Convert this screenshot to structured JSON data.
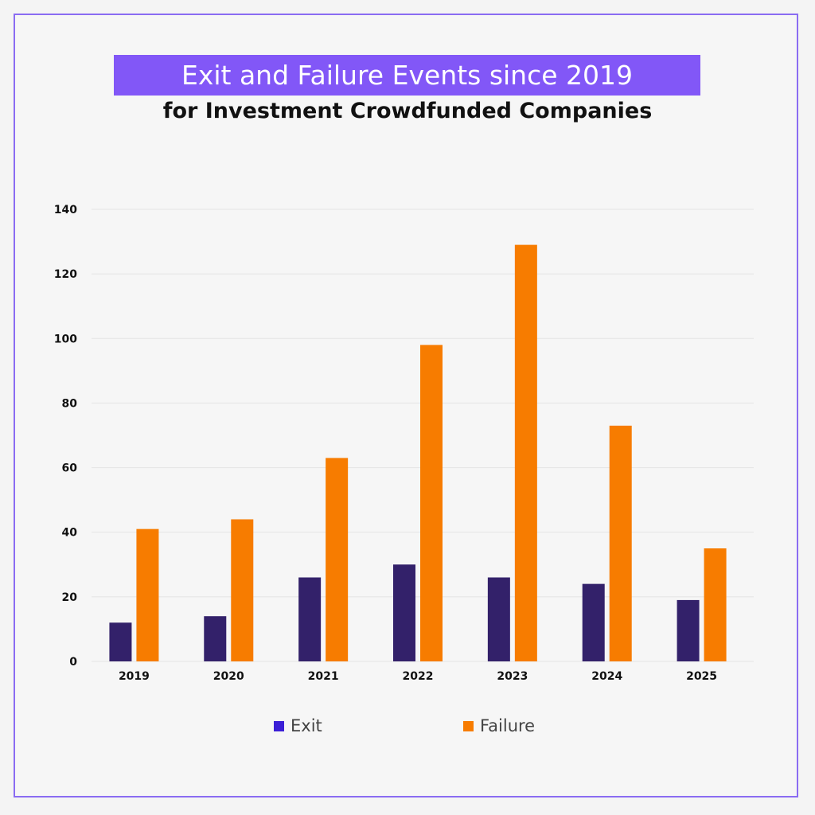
{
  "chart_data": {
    "type": "bar",
    "title": "Exit and Failure Events since 2019",
    "subtitle": "for Investment Crowdfunded Companies",
    "categories": [
      "2019",
      "2020",
      "2021",
      "2022",
      "2023",
      "2024",
      "2025"
    ],
    "series": [
      {
        "name": "Exit",
        "color": "#33216a",
        "values": [
          12,
          14,
          26,
          30,
          26,
          24,
          19
        ]
      },
      {
        "name": "Failure",
        "color": "#f77c00",
        "values": [
          41,
          44,
          63,
          98,
          129,
          73,
          35
        ]
      }
    ],
    "ylim": [
      0,
      140
    ],
    "yticks": [
      0,
      20,
      40,
      60,
      80,
      100,
      120,
      140
    ],
    "grid": true,
    "legend": "bottom",
    "legend_colors": {
      "Exit": "#3b1fd6",
      "Failure": "#f77c00"
    },
    "accent_color": "#8257f7"
  }
}
